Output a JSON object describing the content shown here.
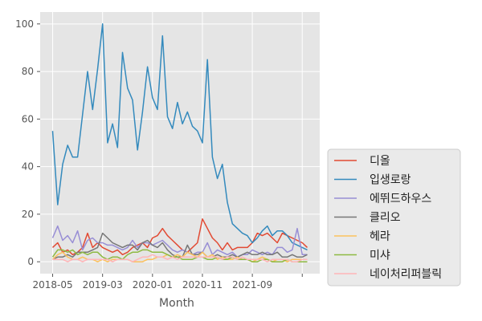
{
  "chart_data": {
    "type": "line",
    "xlabel": "Month",
    "ylabel": "",
    "ylim": [
      -5,
      105
    ],
    "grid": true,
    "legend_placement": "right",
    "x_tick_labels": [
      "2018-05",
      "2019-03",
      "2020-01",
      "2020-11",
      "2021-09",
      ""
    ],
    "x_ticks": [
      0,
      10,
      20,
      30,
      40,
      50
    ],
    "y_ticks": [
      0,
      20,
      40,
      60,
      80,
      100
    ],
    "x": [
      0,
      1,
      2,
      3,
      4,
      5,
      6,
      7,
      8,
      9,
      10,
      11,
      12,
      13,
      14,
      15,
      16,
      17,
      18,
      19,
      20,
      21,
      22,
      23,
      24,
      25,
      26,
      27,
      28,
      29,
      30,
      31,
      32,
      33,
      34,
      35,
      36,
      37,
      38,
      39,
      40,
      41,
      42,
      43,
      44,
      45,
      46,
      47,
      48,
      49,
      50,
      51
    ],
    "series": [
      {
        "name": "디올",
        "color": "#E24A33",
        "values": [
          6,
          8,
          4,
          5,
          3,
          4,
          6,
          12,
          6,
          8,
          6,
          5,
          4,
          5,
          3,
          4,
          6,
          7,
          8,
          6,
          10,
          11,
          14,
          11,
          9,
          7,
          5,
          4,
          6,
          8,
          18,
          14,
          10,
          8,
          5,
          8,
          5,
          6,
          6,
          6,
          8,
          12,
          11,
          12,
          10,
          8,
          12,
          11,
          10,
          9,
          8,
          6
        ]
      },
      {
        "name": "입생로랑",
        "color": "#348ABD",
        "values": [
          55,
          24,
          41,
          49,
          44,
          44,
          62,
          80,
          64,
          81,
          100,
          50,
          58,
          48,
          88,
          73,
          68,
          47,
          63,
          82,
          69,
          64,
          95,
          61,
          56,
          67,
          58,
          63,
          57,
          55,
          50,
          85,
          44,
          35,
          41,
          25,
          16,
          14,
          12,
          11,
          8,
          10,
          13,
          15,
          11,
          13,
          13,
          11,
          8,
          7,
          6,
          5
        ]
      },
      {
        "name": "에뛰드하우스",
        "color": "#988ED5",
        "values": [
          10,
          15,
          9,
          11,
          8,
          13,
          5,
          9,
          10,
          8,
          8,
          7,
          7,
          6,
          5,
          6,
          9,
          6,
          8,
          8,
          7,
          8,
          9,
          7,
          5,
          4,
          5,
          4,
          3,
          4,
          4,
          8,
          3,
          5,
          4,
          3,
          4,
          2,
          3,
          3,
          5,
          4,
          3,
          4,
          3,
          6,
          6,
          4,
          5,
          14,
          3,
          3
        ]
      },
      {
        "name": "클리오",
        "color": "#777777",
        "values": [
          1,
          2,
          2,
          3,
          2,
          4,
          4,
          4,
          5,
          6,
          12,
          10,
          8,
          7,
          6,
          7,
          7,
          5,
          8,
          9,
          7,
          6,
          8,
          5,
          3,
          2,
          2,
          7,
          3,
          3,
          4,
          2,
          2,
          3,
          2,
          2,
          3,
          2,
          3,
          4,
          3,
          3,
          4,
          3,
          3,
          4,
          2,
          2,
          3,
          2,
          2,
          3
        ]
      },
      {
        "name": "헤라",
        "color": "#FBC15E",
        "values": [
          1,
          3,
          4,
          2,
          1,
          1,
          2,
          1,
          1,
          0,
          1,
          0,
          1,
          1,
          1,
          1,
          0,
          0,
          0,
          1,
          1,
          2,
          2,
          3,
          2,
          3,
          2,
          4,
          3,
          2,
          4,
          2,
          3,
          1,
          2,
          1,
          1,
          2,
          1,
          1,
          0,
          1,
          2,
          1,
          0,
          1,
          1,
          0,
          1,
          1,
          1,
          1
        ]
      },
      {
        "name": "미샤",
        "color": "#8EBA42",
        "values": [
          2,
          5,
          5,
          4,
          5,
          3,
          4,
          3,
          4,
          4,
          2,
          1,
          2,
          2,
          1,
          3,
          4,
          4,
          5,
          5,
          4,
          4,
          4,
          3,
          2,
          2,
          1,
          1,
          1,
          2,
          2,
          1,
          1,
          2,
          1,
          1,
          2,
          1,
          1,
          1,
          0,
          0,
          1,
          1,
          0,
          0,
          0,
          1,
          0,
          0,
          0,
          0
        ]
      },
      {
        "name": "네이처리퍼블릭",
        "color": "#FFB5B8",
        "values": [
          1,
          1,
          1,
          0,
          1,
          1,
          0,
          1,
          1,
          1,
          1,
          1,
          0,
          1,
          1,
          1,
          0,
          1,
          2,
          2,
          3,
          2,
          2,
          1,
          2,
          1,
          2,
          2,
          2,
          2,
          2,
          2,
          2,
          2,
          1,
          2,
          2,
          1,
          2,
          1,
          1,
          1,
          1,
          0,
          1,
          1,
          1,
          1,
          0,
          0,
          1,
          1
        ]
      }
    ]
  }
}
